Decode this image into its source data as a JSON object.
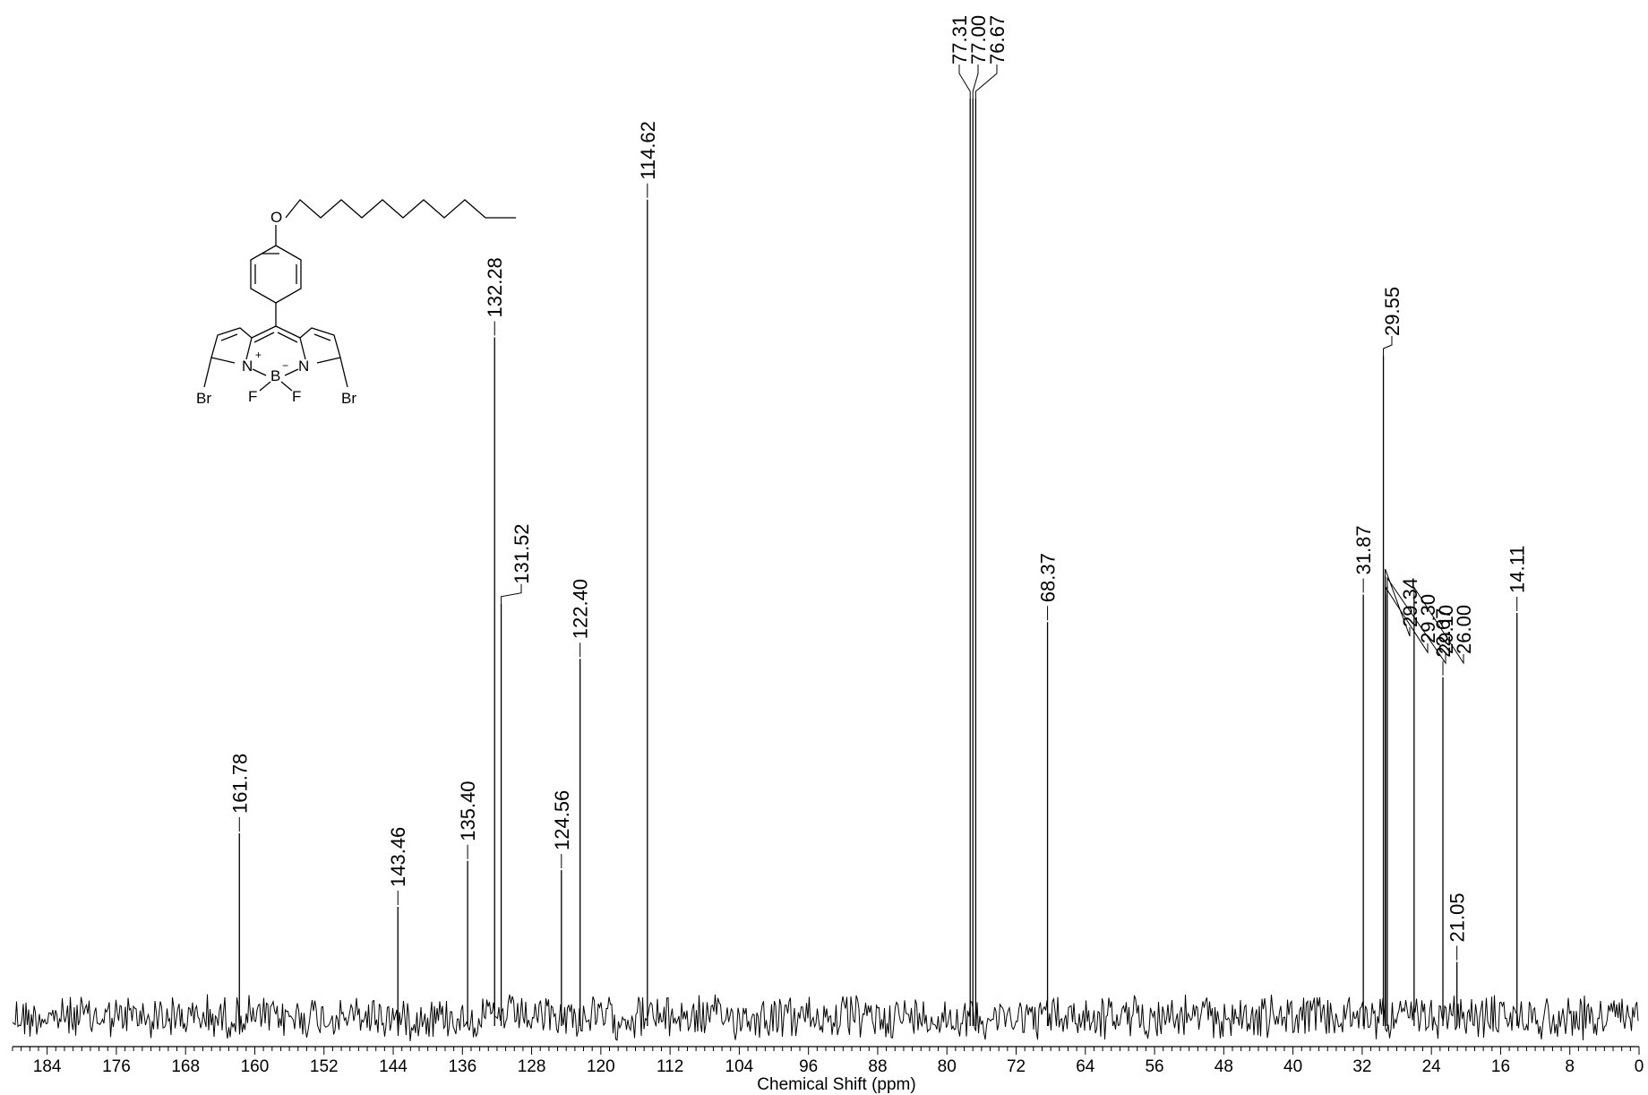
{
  "chart_data": {
    "type": "line",
    "xlabel": "Chemical Shift (ppm)",
    "xlim": [
      188,
      0
    ],
    "x_axis_reversed": true,
    "x_ticks": [
      184,
      176,
      168,
      160,
      152,
      144,
      136,
      128,
      120,
      112,
      104,
      96,
      88,
      80,
      72,
      64,
      56,
      48,
      40,
      32,
      24,
      16,
      8,
      0
    ],
    "grid": false,
    "peaks": [
      {
        "ppm": 161.78,
        "label": "161.78",
        "intensity": 0.2
      },
      {
        "ppm": 143.46,
        "label": "143.46",
        "intensity": 0.12
      },
      {
        "ppm": 135.4,
        "label": "135.40",
        "intensity": 0.17
      },
      {
        "ppm": 132.28,
        "label": "132.28",
        "intensity": 0.74
      },
      {
        "ppm": 131.52,
        "label": "131.52",
        "intensity": 0.45
      },
      {
        "ppm": 124.56,
        "label": "124.56",
        "intensity": 0.16
      },
      {
        "ppm": 122.4,
        "label": "122.40",
        "intensity": 0.39
      },
      {
        "ppm": 114.62,
        "label": "114.62",
        "intensity": 0.89
      },
      {
        "ppm": 77.31,
        "label": "77.31",
        "intensity": 1.0
      },
      {
        "ppm": 77.0,
        "label": "77.00",
        "intensity": 1.0
      },
      {
        "ppm": 76.67,
        "label": "76.67",
        "intensity": 1.0
      },
      {
        "ppm": 68.37,
        "label": "68.37",
        "intensity": 0.43
      },
      {
        "ppm": 31.87,
        "label": "31.87",
        "intensity": 0.46
      },
      {
        "ppm": 29.55,
        "label": "29.55",
        "intensity": 0.72
      },
      {
        "ppm": 29.34,
        "label": "29.34",
        "intensity": 0.48
      },
      {
        "ppm": 29.3,
        "label": "29.30",
        "intensity": 0.46
      },
      {
        "ppm": 29.1,
        "label": "29.10",
        "intensity": 0.47
      },
      {
        "ppm": 26.0,
        "label": "26.00",
        "intensity": 0.46
      },
      {
        "ppm": 22.67,
        "label": "22.67",
        "intensity": 0.37
      },
      {
        "ppm": 21.05,
        "label": "21.05",
        "intensity": 0.06
      },
      {
        "ppm": 14.11,
        "label": "14.11",
        "intensity": 0.44
      }
    ]
  },
  "structure": {
    "atoms": [
      "O",
      "N",
      "N",
      "B",
      "F",
      "F",
      "Br",
      "Br"
    ],
    "charges": [
      "+",
      "−"
    ]
  }
}
